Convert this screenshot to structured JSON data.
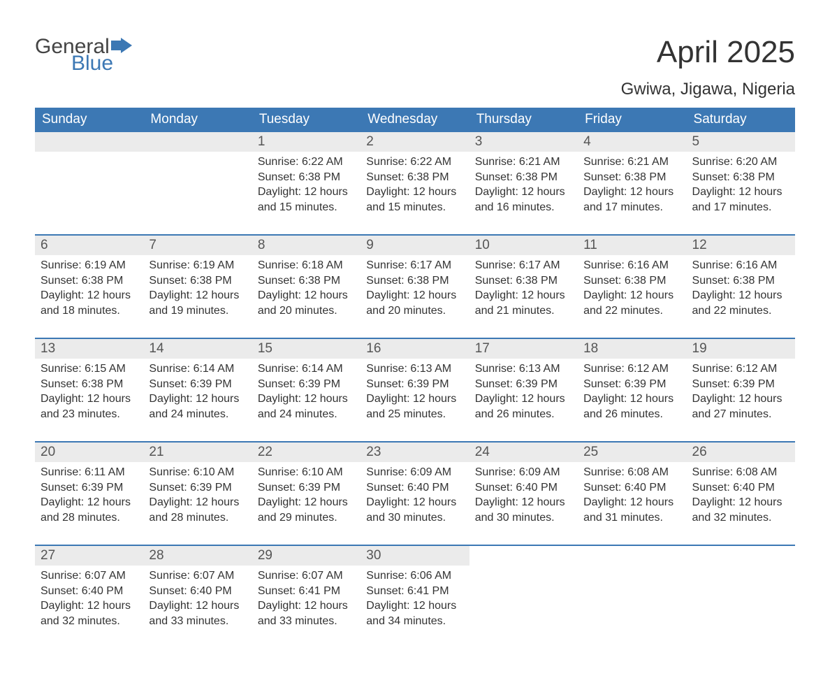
{
  "logo": {
    "text_general": "General",
    "text_blue": "Blue",
    "flag_color": "#3c78b4"
  },
  "colors": {
    "header_bg": "#3c78b4",
    "header_text": "#ffffff",
    "daynum_bg": "#ebebeb",
    "daynum_text": "#555555",
    "body_text": "#333333",
    "border": "#3c78b4",
    "page_bg": "#ffffff"
  },
  "title": "April 2025",
  "location": "Gwiwa, Jigawa, Nigeria",
  "weekdays": [
    "Sunday",
    "Monday",
    "Tuesday",
    "Wednesday",
    "Thursday",
    "Friday",
    "Saturday"
  ],
  "labels": {
    "sunrise": "Sunrise:",
    "sunset": "Sunset:",
    "daylight": "Daylight:"
  },
  "weeks": [
    [
      null,
      null,
      {
        "n": "1",
        "sunrise": "6:22 AM",
        "sunset": "6:38 PM",
        "daylight": "12 hours and 15 minutes."
      },
      {
        "n": "2",
        "sunrise": "6:22 AM",
        "sunset": "6:38 PM",
        "daylight": "12 hours and 15 minutes."
      },
      {
        "n": "3",
        "sunrise": "6:21 AM",
        "sunset": "6:38 PM",
        "daylight": "12 hours and 16 minutes."
      },
      {
        "n": "4",
        "sunrise": "6:21 AM",
        "sunset": "6:38 PM",
        "daylight": "12 hours and 17 minutes."
      },
      {
        "n": "5",
        "sunrise": "6:20 AM",
        "sunset": "6:38 PM",
        "daylight": "12 hours and 17 minutes."
      }
    ],
    [
      {
        "n": "6",
        "sunrise": "6:19 AM",
        "sunset": "6:38 PM",
        "daylight": "12 hours and 18 minutes."
      },
      {
        "n": "7",
        "sunrise": "6:19 AM",
        "sunset": "6:38 PM",
        "daylight": "12 hours and 19 minutes."
      },
      {
        "n": "8",
        "sunrise": "6:18 AM",
        "sunset": "6:38 PM",
        "daylight": "12 hours and 20 minutes."
      },
      {
        "n": "9",
        "sunrise": "6:17 AM",
        "sunset": "6:38 PM",
        "daylight": "12 hours and 20 minutes."
      },
      {
        "n": "10",
        "sunrise": "6:17 AM",
        "sunset": "6:38 PM",
        "daylight": "12 hours and 21 minutes."
      },
      {
        "n": "11",
        "sunrise": "6:16 AM",
        "sunset": "6:38 PM",
        "daylight": "12 hours and 22 minutes."
      },
      {
        "n": "12",
        "sunrise": "6:16 AM",
        "sunset": "6:38 PM",
        "daylight": "12 hours and 22 minutes."
      }
    ],
    [
      {
        "n": "13",
        "sunrise": "6:15 AM",
        "sunset": "6:38 PM",
        "daylight": "12 hours and 23 minutes."
      },
      {
        "n": "14",
        "sunrise": "6:14 AM",
        "sunset": "6:39 PM",
        "daylight": "12 hours and 24 minutes."
      },
      {
        "n": "15",
        "sunrise": "6:14 AM",
        "sunset": "6:39 PM",
        "daylight": "12 hours and 24 minutes."
      },
      {
        "n": "16",
        "sunrise": "6:13 AM",
        "sunset": "6:39 PM",
        "daylight": "12 hours and 25 minutes."
      },
      {
        "n": "17",
        "sunrise": "6:13 AM",
        "sunset": "6:39 PM",
        "daylight": "12 hours and 26 minutes."
      },
      {
        "n": "18",
        "sunrise": "6:12 AM",
        "sunset": "6:39 PM",
        "daylight": "12 hours and 26 minutes."
      },
      {
        "n": "19",
        "sunrise": "6:12 AM",
        "sunset": "6:39 PM",
        "daylight": "12 hours and 27 minutes."
      }
    ],
    [
      {
        "n": "20",
        "sunrise": "6:11 AM",
        "sunset": "6:39 PM",
        "daylight": "12 hours and 28 minutes."
      },
      {
        "n": "21",
        "sunrise": "6:10 AM",
        "sunset": "6:39 PM",
        "daylight": "12 hours and 28 minutes."
      },
      {
        "n": "22",
        "sunrise": "6:10 AM",
        "sunset": "6:39 PM",
        "daylight": "12 hours and 29 minutes."
      },
      {
        "n": "23",
        "sunrise": "6:09 AM",
        "sunset": "6:40 PM",
        "daylight": "12 hours and 30 minutes."
      },
      {
        "n": "24",
        "sunrise": "6:09 AM",
        "sunset": "6:40 PM",
        "daylight": "12 hours and 30 minutes."
      },
      {
        "n": "25",
        "sunrise": "6:08 AM",
        "sunset": "6:40 PM",
        "daylight": "12 hours and 31 minutes."
      },
      {
        "n": "26",
        "sunrise": "6:08 AM",
        "sunset": "6:40 PM",
        "daylight": "12 hours and 32 minutes."
      }
    ],
    [
      {
        "n": "27",
        "sunrise": "6:07 AM",
        "sunset": "6:40 PM",
        "daylight": "12 hours and 32 minutes."
      },
      {
        "n": "28",
        "sunrise": "6:07 AM",
        "sunset": "6:40 PM",
        "daylight": "12 hours and 33 minutes."
      },
      {
        "n": "29",
        "sunrise": "6:07 AM",
        "sunset": "6:41 PM",
        "daylight": "12 hours and 33 minutes."
      },
      {
        "n": "30",
        "sunrise": "6:06 AM",
        "sunset": "6:41 PM",
        "daylight": "12 hours and 34 minutes."
      },
      null,
      null,
      null
    ]
  ]
}
